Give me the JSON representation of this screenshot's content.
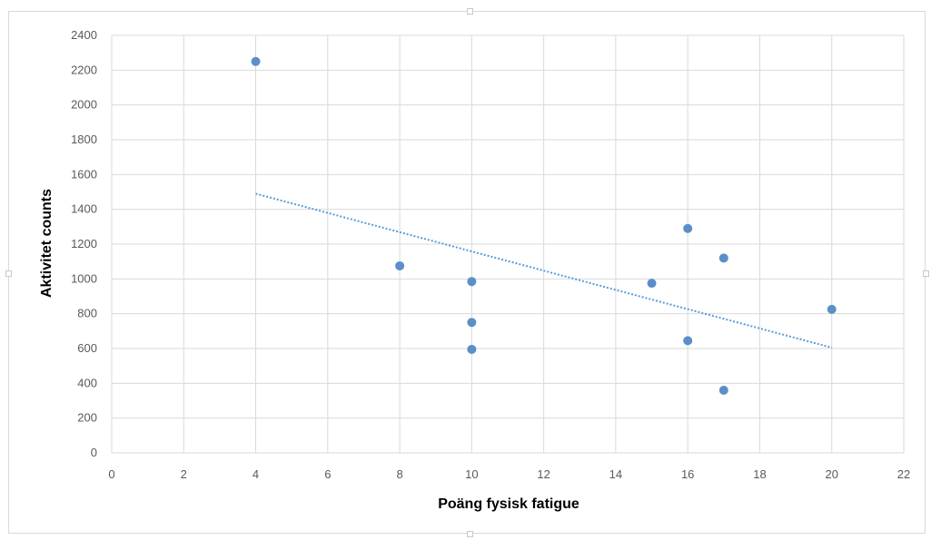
{
  "chart_data": {
    "type": "scatter",
    "title": "",
    "xlabel": "Poäng fysisk fatigue",
    "ylabel": "Aktivitet counts",
    "xlim": [
      0,
      22
    ],
    "ylim": [
      0,
      2400
    ],
    "x_ticks": [
      0,
      2,
      4,
      6,
      8,
      10,
      12,
      14,
      16,
      18,
      20,
      22
    ],
    "y_ticks": [
      0,
      200,
      400,
      600,
      800,
      1000,
      1200,
      1400,
      1600,
      1800,
      2000,
      2200,
      2400
    ],
    "grid": true,
    "legend": "none",
    "points": [
      {
        "x": 4,
        "y": 2250
      },
      {
        "x": 8,
        "y": 1075
      },
      {
        "x": 10,
        "y": 985
      },
      {
        "x": 10,
        "y": 750
      },
      {
        "x": 10,
        "y": 595
      },
      {
        "x": 15,
        "y": 975
      },
      {
        "x": 16,
        "y": 1290
      },
      {
        "x": 16,
        "y": 645
      },
      {
        "x": 17,
        "y": 1120
      },
      {
        "x": 17,
        "y": 360
      },
      {
        "x": 20,
        "y": 825
      }
    ],
    "trendline": {
      "type": "linear",
      "style": "dotted",
      "from": {
        "x": 4,
        "y": 1490
      },
      "to": {
        "x": 20,
        "y": 605
      }
    },
    "colors": {
      "marker": "#5b8fc7",
      "trendline": "#5b9bd5",
      "grid": "#d9d9d9"
    }
  }
}
